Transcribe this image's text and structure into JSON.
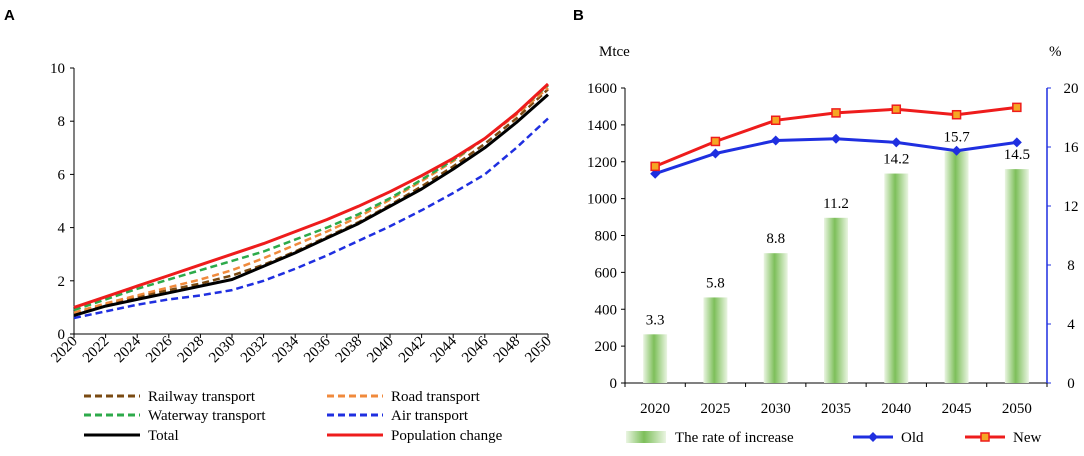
{
  "chart_data": [
    {
      "panel": "A",
      "type": "line",
      "x": [
        2020,
        2022,
        2024,
        2026,
        2028,
        2030,
        2032,
        2034,
        2036,
        2038,
        2040,
        2042,
        2044,
        2046,
        2048,
        2050
      ],
      "xlim": [
        2020,
        2050
      ],
      "ylim": [
        0,
        10
      ],
      "yticks": [
        0,
        2,
        4,
        6,
        8,
        10
      ],
      "xticks": [
        2020,
        2022,
        2024,
        2026,
        2028,
        2030,
        2032,
        2034,
        2036,
        2038,
        2040,
        2042,
        2044,
        2046,
        2048,
        2050
      ],
      "series": [
        {
          "name": "Railway transport",
          "color": "#7a4a12",
          "dash": true,
          "values": [
            0.75,
            1.1,
            1.4,
            1.65,
            1.9,
            2.2,
            2.6,
            3.1,
            3.65,
            4.2,
            4.85,
            5.55,
            6.3,
            7.15,
            8.1,
            9.2
          ]
        },
        {
          "name": "Road transport",
          "color": "#f08a3c",
          "dash": true,
          "values": [
            0.8,
            1.15,
            1.45,
            1.75,
            2.05,
            2.4,
            2.85,
            3.35,
            3.85,
            4.4,
            5.05,
            5.75,
            6.5,
            7.35,
            8.25,
            9.25
          ]
        },
        {
          "name": "Waterway transport",
          "color": "#2daa4a",
          "dash": true,
          "values": [
            0.9,
            1.3,
            1.7,
            2.05,
            2.4,
            2.75,
            3.1,
            3.55,
            4.0,
            4.5,
            5.1,
            5.8,
            6.55,
            7.35,
            8.3,
            9.35
          ]
        },
        {
          "name": "Air transport",
          "color": "#1f2fe0",
          "dash": true,
          "values": [
            0.6,
            0.85,
            1.1,
            1.3,
            1.45,
            1.65,
            2.0,
            2.45,
            2.95,
            3.5,
            4.05,
            4.65,
            5.3,
            6.0,
            7.0,
            8.1
          ]
        },
        {
          "name": "Total",
          "color": "#000000",
          "dash": false,
          "values": [
            0.7,
            1.05,
            1.3,
            1.55,
            1.8,
            2.05,
            2.55,
            3.05,
            3.6,
            4.15,
            4.8,
            5.45,
            6.2,
            7.0,
            7.95,
            9.0
          ]
        },
        {
          "name": "Population change",
          "color": "#ee1c1c",
          "dash": false,
          "values": [
            1.0,
            1.4,
            1.8,
            2.2,
            2.6,
            3.0,
            3.4,
            3.85,
            4.3,
            4.8,
            5.35,
            5.95,
            6.6,
            7.35,
            8.3,
            9.4
          ]
        }
      ]
    },
    {
      "panel": "B",
      "type": "bar",
      "categories": [
        "2020",
        "2025",
        "2030",
        "2035",
        "2040",
        "2045",
        "2050"
      ],
      "left_axis": {
        "unit": "Mtce",
        "ylim": [
          0,
          1600
        ],
        "ticks": [
          0,
          200,
          400,
          600,
          800,
          1000,
          1200,
          1400,
          1600
        ]
      },
      "right_axis": {
        "unit": "%",
        "ylim": [
          0,
          20
        ],
        "ticks": [
          0,
          4,
          8,
          12,
          16,
          20
        ]
      },
      "series": [
        {
          "name": "The rate of increase",
          "kind": "bar",
          "axis": "right",
          "color": "#7dbf5a",
          "values": [
            3.3,
            5.8,
            8.8,
            11.2,
            14.2,
            15.7,
            14.5
          ],
          "labels": [
            "3.3",
            "5.8",
            "8.8",
            "11.2",
            "14.2",
            "15.7",
            "14.5"
          ]
        },
        {
          "name": "Old",
          "kind": "line",
          "axis": "left",
          "color": "#1f2fe0",
          "marker": "diamond",
          "values": [
            1135,
            1245,
            1315,
            1325,
            1305,
            1260,
            1305
          ]
        },
        {
          "name": "New",
          "kind": "line",
          "axis": "left",
          "color": "#ee1c1c",
          "marker": "square",
          "values": [
            1175,
            1310,
            1425,
            1465,
            1485,
            1455,
            1495
          ]
        }
      ]
    }
  ],
  "panels": {
    "a_label": "A",
    "b_label": "B"
  }
}
